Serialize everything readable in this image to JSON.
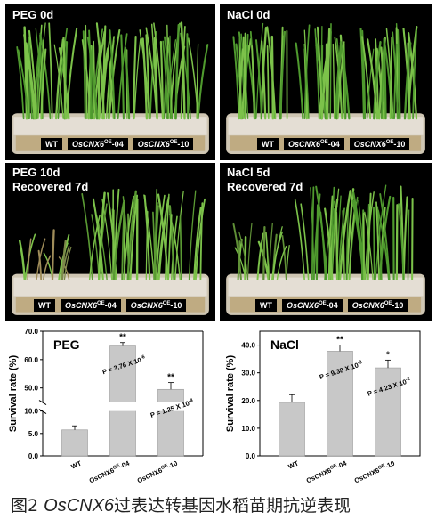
{
  "figure": {
    "panels": [
      {
        "label_lines": [
          "PEG 0d"
        ]
      },
      {
        "label_lines": [
          "NaCl 0d"
        ]
      },
      {
        "label_lines": [
          "PEG 10d",
          "Recovered 7d"
        ]
      },
      {
        "label_lines": [
          "NaCl 5d",
          "Recovered 7d"
        ]
      }
    ],
    "genotypes": {
      "wt": "WT",
      "line1_name": "OsCNX6",
      "line1_sup": "OE",
      "line1_suffix": "-04",
      "line2_name": "OsCNX6",
      "line2_sup": "OE",
      "line2_suffix": "-10"
    },
    "caption": {
      "prefix": "图2",
      "gene": "OsCNX6",
      "text": "过表达转基因水稻苗期抗逆表现"
    }
  },
  "colors": {
    "photo_bg": "#000000",
    "leaf": "#4f9a2e",
    "leaf_light": "#7cc24a",
    "bar_fill": "#c8c8c8",
    "tray": "#d9d2c3"
  },
  "chart_data": [
    {
      "type": "bar",
      "title": "PEG",
      "xlabel": "",
      "ylabel": "Survival rate (%)",
      "categories": [
        "WT",
        "OsCNX6OE-04",
        "OsCNX6OE-10"
      ],
      "values": [
        5.8,
        64.8,
        49.5
      ],
      "errors": [
        0.9,
        1.2,
        2.4
      ],
      "significance": [
        "",
        "**",
        "**"
      ],
      "p_values": [
        "",
        "P = 3.76 X 10-6",
        "P = 1.25 X 10-4"
      ],
      "axis_break": [
        10,
        45
      ],
      "yticks_lower": [
        "0.0",
        "5.0",
        "10.0"
      ],
      "yticks_upper": [
        "50.0",
        "60.0",
        "70.0"
      ],
      "ylim": [
        0,
        70
      ]
    },
    {
      "type": "bar",
      "title": "NaCl",
      "xlabel": "",
      "ylabel": "Survival rate (%)",
      "categories": [
        "WT",
        "OsCNX6OE-04",
        "OsCNX6OE-10"
      ],
      "values": [
        19.3,
        37.8,
        31.8
      ],
      "errors": [
        2.8,
        2.2,
        2.8
      ],
      "significance": [
        "",
        "**",
        "*"
      ],
      "p_values": [
        "",
        "P = 9.38 X 10-3",
        "P = 4.23 X 10-2"
      ],
      "yticks": [
        "0.0",
        "10.0",
        "20.0",
        "30.0",
        "40.0"
      ],
      "ylim": [
        0,
        45
      ]
    }
  ]
}
